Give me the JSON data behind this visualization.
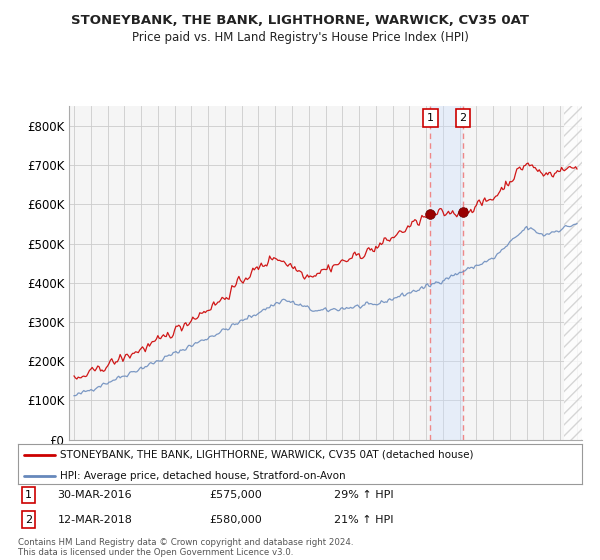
{
  "title": "STONEYBANK, THE BANK, LIGHTHORNE, WARWICK, CV35 0AT",
  "subtitle": "Price paid vs. HM Land Registry's House Price Index (HPI)",
  "ylabel_ticks": [
    "£0",
    "£100K",
    "£200K",
    "£300K",
    "£400K",
    "£500K",
    "£600K",
    "£700K",
    "£800K"
  ],
  "ytick_values": [
    0,
    100000,
    200000,
    300000,
    400000,
    500000,
    600000,
    700000,
    800000
  ],
  "ylim": [
    0,
    850000
  ],
  "xlim_start": 1994.7,
  "xlim_end": 2025.3,
  "sale1_x": 2016.24,
  "sale1_y": 575000,
  "sale2_x": 2018.2,
  "sale2_y": 580000,
  "legend_line1": "STONEYBANK, THE BANK, LIGHTHORNE, WARWICK, CV35 0AT (detached house)",
  "legend_line2": "HPI: Average price, detached house, Stratford-on-Avon",
  "footer": "Contains HM Land Registry data © Crown copyright and database right 2024.\nThis data is licensed under the Open Government Licence v3.0.",
  "red_color": "#cc0000",
  "blue_color": "#6688bb",
  "vline_color": "#ee8888",
  "background_color": "#f5f5f5",
  "grid_color": "#cccccc",
  "hatch_start": 2024.25
}
